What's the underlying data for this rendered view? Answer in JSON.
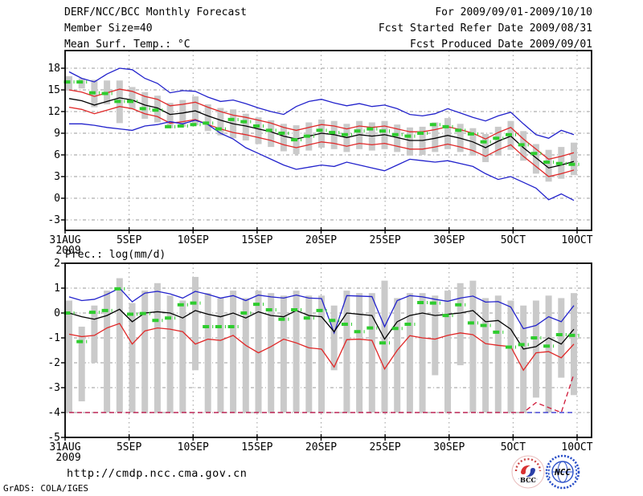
{
  "header": {
    "title": "DERF/NCC/BCC Monthly Forecast",
    "member_size": "Member Size=40",
    "for_range": "For 2009/09/01-2009/10/10",
    "fcst_started": "Fcst Started Refer Date 2009/08/31",
    "fcst_produced": "Fcst Produced Date 2009/09/01"
  },
  "footer": {
    "url": "http://cmdp.ncc.cma.gov.cn",
    "credit": "GrADS: COLA/IGES",
    "logos": [
      {
        "label": "BCC"
      },
      {
        "label": "NCC"
      }
    ]
  },
  "chart_data": [
    {
      "name": "surface-temperature",
      "type": "line",
      "title": "Mean Surf. Temp.: °C",
      "xlabel": "",
      "ylabel": "",
      "x_domain": [
        "31AUG2009",
        "10OCT2009"
      ],
      "n_days": 41,
      "x_ticks": [
        "31AUG",
        "5SEP",
        "10SEP",
        "15SEP",
        "20SEP",
        "25SEP",
        "30SEP",
        "5OCT",
        "10OCT"
      ],
      "x_tick_days": [
        0,
        5,
        10,
        15,
        20,
        25,
        30,
        35,
        40
      ],
      "x_year_label": "2009",
      "y_ticks": [
        18,
        15,
        12,
        9,
        6,
        3,
        0,
        -3
      ],
      "ylim": [
        -4.3,
        20.6
      ],
      "grid": true,
      "legend": "none",
      "series": [
        {
          "name": "ensemble-max",
          "color": "#2222cc",
          "values": [
            17.5,
            16.6,
            16.1,
            17.2,
            18.0,
            17.8,
            16.6,
            15.9,
            14.6,
            14.9,
            14.8,
            14.0,
            13.4,
            13.6,
            13.1,
            12.5,
            12.0,
            11.6,
            12.7,
            13.4,
            13.7,
            13.2,
            12.8,
            13.1,
            12.7,
            12.9,
            12.4,
            11.6,
            11.4,
            11.7,
            12.4,
            11.8,
            11.2,
            10.7,
            11.4,
            11.9,
            10.3,
            8.8,
            8.3,
            9.4,
            8.8
          ]
        },
        {
          "name": "upper-spread",
          "color": "#e02828",
          "values": [
            15.0,
            14.7,
            14.1,
            14.6,
            15.1,
            14.8,
            14.1,
            13.7,
            12.8,
            13.0,
            13.3,
            12.6,
            12.0,
            11.5,
            11.2,
            10.8,
            10.4,
            9.8,
            9.4,
            9.8,
            10.2,
            10.0,
            9.6,
            10.0,
            9.8,
            10.0,
            9.6,
            9.2,
            9.2,
            9.5,
            9.9,
            9.5,
            9.0,
            8.2,
            9.1,
            9.8,
            8.2,
            6.8,
            5.4,
            5.8,
            6.3
          ]
        },
        {
          "name": "ensemble-mean",
          "color": "#000000",
          "values": [
            13.8,
            13.5,
            12.9,
            13.4,
            13.9,
            13.6,
            12.9,
            12.5,
            11.6,
            11.8,
            12.1,
            11.4,
            10.8,
            10.3,
            10.0,
            9.6,
            9.2,
            8.6,
            8.2,
            8.6,
            9.0,
            8.8,
            8.4,
            8.8,
            8.6,
            8.8,
            8.4,
            8.0,
            8.0,
            8.3,
            8.7,
            8.3,
            7.8,
            7.0,
            7.9,
            8.6,
            7.0,
            5.6,
            4.2,
            4.6,
            5.1
          ]
        },
        {
          "name": "lower-spread",
          "color": "#e02828",
          "values": [
            12.6,
            12.3,
            11.7,
            12.2,
            12.7,
            12.4,
            11.7,
            11.3,
            10.4,
            10.6,
            10.9,
            10.2,
            9.6,
            9.1,
            8.8,
            8.4,
            8.0,
            7.4,
            7.0,
            7.4,
            7.8,
            7.6,
            7.2,
            7.6,
            7.4,
            7.6,
            7.2,
            6.8,
            6.8,
            7.1,
            7.5,
            7.1,
            6.6,
            5.8,
            6.7,
            7.4,
            5.8,
            4.4,
            3.0,
            3.4,
            3.9
          ]
        },
        {
          "name": "ensemble-min",
          "color": "#2222cc",
          "values": [
            10.3,
            10.3,
            10.1,
            9.8,
            9.6,
            9.4,
            10.0,
            10.2,
            10.6,
            10.3,
            10.8,
            10.2,
            9.0,
            8.2,
            7.0,
            6.2,
            5.4,
            4.6,
            4.0,
            4.3,
            4.6,
            4.4,
            5.0,
            4.6,
            4.2,
            3.8,
            4.6,
            5.4,
            5.2,
            5.0,
            5.2,
            4.8,
            4.4,
            3.4,
            2.6,
            3.0,
            2.2,
            1.4,
            -0.2,
            0.6,
            -0.3
          ]
        }
      ],
      "bars": {
        "name": "climatology-range",
        "color": "#cacaca",
        "top": [
          16.9,
          16.6,
          16.4,
          16.3,
          16.3,
          15.4,
          14.7,
          14.2,
          13.2,
          13.6,
          14.1,
          13.0,
          12.5,
          12.3,
          11.7,
          11.2,
          10.8,
          10.3,
          10.1,
          10.5,
          10.9,
          10.7,
          10.3,
          10.7,
          10.5,
          10.7,
          10.2,
          9.8,
          9.9,
          10.5,
          11.1,
          10.3,
          9.7,
          8.9,
          9.9,
          10.7,
          9.3,
          7.5,
          6.7,
          7.1,
          7.7
        ],
        "bottom": [
          14.9,
          15.2,
          12.6,
          13.0,
          10.4,
          12.3,
          11.0,
          10.5,
          9.7,
          9.9,
          10.1,
          9.3,
          8.7,
          8.3,
          8.0,
          7.5,
          7.1,
          6.5,
          6.1,
          6.6,
          7.0,
          6.8,
          6.4,
          6.8,
          6.6,
          6.8,
          6.4,
          5.9,
          6.0,
          6.4,
          6.8,
          6.4,
          5.9,
          5.0,
          5.9,
          6.7,
          5.2,
          3.4,
          2.3,
          2.7,
          3.2
        ]
      },
      "obs": {
        "name": "observation",
        "color": "#2ecc2e",
        "values": [
          16.1,
          16.1,
          14.6,
          14.5,
          13.4,
          13.4,
          12.4,
          12.2,
          9.9,
          10.0,
          10.2,
          10.4,
          9.6,
          10.9,
          10.6,
          10.0,
          9.4,
          9.0,
          8.1,
          8.6,
          9.4,
          9.1,
          8.8,
          9.3,
          9.6,
          9.3,
          8.8,
          8.6,
          9.0,
          10.2,
          9.9,
          9.4,
          8.9,
          7.8,
          8.3,
          8.8,
          7.4,
          6.2,
          5.0,
          4.8,
          4.7
        ]
      }
    },
    {
      "name": "precipitation",
      "type": "line",
      "title": "Prec.: log(mm/d)",
      "xlabel": "",
      "ylabel": "",
      "x_domain": [
        "31AUG2009",
        "10OCT2009"
      ],
      "n_days": 41,
      "x_ticks": [
        "31AUG",
        "5SEP",
        "10SEP",
        "15SEP",
        "20SEP",
        "25SEP",
        "30SEP",
        "5OCT",
        "10OCT"
      ],
      "x_tick_days": [
        0,
        5,
        10,
        15,
        20,
        25,
        30,
        35,
        40
      ],
      "x_year_label": "2009",
      "y_ticks": [
        2,
        1,
        0,
        -1,
        -2,
        -3,
        -4,
        -5
      ],
      "ylim": [
        -5,
        2
      ],
      "grid": true,
      "legend": "none",
      "series": [
        {
          "name": "ensemble-max",
          "color": "#2222cc",
          "values": [
            0.65,
            0.5,
            0.55,
            0.75,
            1.0,
            0.45,
            0.8,
            0.87,
            0.77,
            0.6,
            0.87,
            0.75,
            0.6,
            0.7,
            0.5,
            0.72,
            0.65,
            0.6,
            0.72,
            0.6,
            0.58,
            -0.8,
            0.7,
            0.68,
            0.66,
            -0.55,
            0.5,
            0.7,
            0.65,
            0.55,
            0.47,
            0.6,
            0.68,
            0.44,
            0.46,
            0.24,
            -0.63,
            -0.5,
            -0.15,
            -0.35,
            0.3
          ]
        },
        {
          "name": "ensemble-mean",
          "color": "#000000",
          "values": [
            0.0,
            -0.15,
            -0.25,
            -0.1,
            0.15,
            -0.35,
            0.0,
            0.05,
            0.0,
            -0.2,
            0.1,
            -0.05,
            -0.15,
            0.0,
            -0.2,
            0.05,
            -0.1,
            -0.15,
            0.1,
            -0.1,
            -0.15,
            -0.75,
            0.0,
            -0.05,
            -0.1,
            -1.05,
            -0.35,
            -0.1,
            0.0,
            -0.1,
            -0.05,
            0.0,
            0.1,
            -0.35,
            -0.3,
            -0.65,
            -1.45,
            -1.35,
            -1.0,
            -1.25,
            -0.65
          ]
        },
        {
          "name": "lower-spread",
          "color": "#e02828",
          "values": [
            -0.85,
            -0.95,
            -0.9,
            -0.6,
            -0.42,
            -1.25,
            -0.72,
            -0.6,
            -0.65,
            -0.75,
            -1.25,
            -1.05,
            -1.1,
            -0.9,
            -1.3,
            -1.6,
            -1.35,
            -1.05,
            -1.2,
            -1.4,
            -1.45,
            -2.17,
            -1.07,
            -1.05,
            -1.1,
            -2.25,
            -1.5,
            -0.91,
            -1.0,
            -1.05,
            -0.9,
            -0.8,
            -0.87,
            -1.23,
            -1.3,
            -1.35,
            -2.3,
            -1.6,
            -1.55,
            -1.8,
            -1.25
          ]
        },
        {
          "name": "ensemble-min-clamped",
          "color": "#2222cc",
          "dash": "6 4",
          "values": [
            -4,
            -4,
            -4,
            -4,
            -4,
            -4,
            -4,
            -4,
            -4,
            -4,
            -4,
            -4,
            -4,
            -4,
            -4,
            -4,
            -4,
            -4,
            -4,
            -4,
            -4,
            -4,
            -4,
            -4,
            -4,
            -4,
            -4,
            -4,
            -4,
            -4,
            -4,
            -4,
            -4,
            -4,
            -4,
            -4,
            -4,
            -4,
            -4,
            -4,
            -4
          ]
        },
        {
          "name": "min-spread-clamped",
          "color": "#d01838",
          "dash": "6 4",
          "values": [
            -4,
            -4,
            -4,
            -4,
            -4,
            -4,
            -4,
            -4,
            -4,
            -4,
            -4,
            -4,
            -4,
            -4,
            -4,
            -4,
            -4,
            -4,
            -4,
            -4,
            -4,
            -4,
            -4,
            -4,
            -4,
            -4,
            -4,
            -4,
            -4,
            -4,
            -4,
            -4,
            -4,
            -4,
            -4,
            -4,
            -4,
            -3.6,
            -3.8,
            -4,
            -2.45
          ]
        }
      ],
      "bars": {
        "name": "climatology-range",
        "color": "#cacaca",
        "top": [
          0.5,
          -0.55,
          0.3,
          0.9,
          1.4,
          0.4,
          0.9,
          1.2,
          0.7,
          0.5,
          1.45,
          0.8,
          0.6,
          0.9,
          0.6,
          0.9,
          0.8,
          0.7,
          0.9,
          0.7,
          0.7,
          0.3,
          0.9,
          0.8,
          0.8,
          1.3,
          0.6,
          0.8,
          0.8,
          0.7,
          0.9,
          1.2,
          1.3,
          0.6,
          0.7,
          0.5,
          0.3,
          0.5,
          0.7,
          0.6,
          0.8
        ],
        "bottom": [
          -4,
          -3.55,
          -2.0,
          -4,
          -4,
          -4,
          -4,
          -4,
          -4,
          -4,
          -2.3,
          -4,
          -4,
          -4,
          -4,
          -4,
          -4,
          -4,
          -4,
          -4,
          -4,
          -2.3,
          -4,
          -4,
          -4,
          -4,
          -4,
          -4,
          -4,
          -2.5,
          -4,
          -2.1,
          -4,
          -4,
          -4,
          -4,
          -4,
          -3.4,
          -4,
          -2.6,
          -3.3
        ]
      },
      "obs": {
        "name": "observation",
        "color": "#2ecc2e",
        "values": [
          0.0,
          -1.15,
          0.03,
          0.1,
          0.97,
          -0.05,
          -0.02,
          -0.3,
          -0.2,
          0.33,
          0.4,
          -0.55,
          -0.55,
          -0.55,
          0.0,
          0.35,
          0.13,
          -0.25,
          0.13,
          -0.2,
          0.1,
          -0.3,
          -0.45,
          -0.75,
          -0.6,
          -1.2,
          -0.62,
          -0.45,
          0.42,
          0.4,
          -0.1,
          0.33,
          -0.4,
          -0.5,
          -0.77,
          -1.37,
          -1.27,
          -1.0,
          -1.33,
          -0.87,
          -0.9
        ]
      }
    }
  ]
}
